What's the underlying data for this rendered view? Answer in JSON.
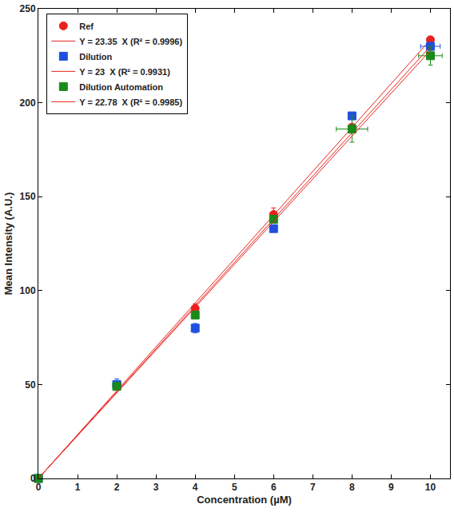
{
  "chart_data": {
    "type": "scatter",
    "xlabel": "Concentration (µM)",
    "ylabel": "Mean Intensity (A.U.)",
    "xlim": [
      0,
      10.5
    ],
    "ylim": [
      0,
      250
    ],
    "xticks": [
      0,
      1,
      2,
      3,
      4,
      5,
      6,
      7,
      8,
      9,
      10
    ],
    "yticks": [
      0,
      50,
      100,
      150,
      200,
      250
    ],
    "grid": false,
    "legend": "upper left",
    "series": [
      {
        "name": "Ref",
        "type": "scatter",
        "marker": "circle",
        "color": "#e8211d",
        "x": [
          0,
          2,
          4,
          6,
          8,
          10
        ],
        "values": [
          0,
          49.5,
          90.5,
          140.5,
          187,
          233.5
        ],
        "x_error": [
          0,
          0,
          0,
          0,
          0,
          0
        ],
        "y_error": [
          0,
          1,
          2.5,
          3.5,
          1.5,
          1.5
        ]
      },
      {
        "name": "Y = 23.35  X (R² = 0.9996)",
        "type": "line",
        "line_style": "solid",
        "color": "#e8211d",
        "x": [
          0,
          10
        ],
        "values": [
          0,
          233.5
        ]
      },
      {
        "name": "Dilution",
        "type": "scatter",
        "marker": "square",
        "color": "#1f4fe0",
        "x": [
          0,
          2,
          4,
          6,
          8,
          10
        ],
        "values": [
          0,
          50,
          80,
          133,
          193,
          230
        ],
        "x_error": [
          0,
          0.1,
          0.05,
          0,
          0,
          0.25
        ],
        "y_error": [
          0,
          3,
          2.5,
          1,
          1,
          2
        ]
      },
      {
        "name": "Y = 23  X (R² = 0.9931)",
        "type": "line",
        "line_style": "solid",
        "color": "#e8211d",
        "x": [
          0,
          10
        ],
        "values": [
          0,
          230
        ]
      },
      {
        "name": "Dilution Automation",
        "type": "scatter",
        "marker": "square",
        "color": "#1a8a1a",
        "x": [
          0,
          2,
          4,
          6,
          8,
          10
        ],
        "values": [
          0,
          49,
          87,
          138,
          186,
          225
        ],
        "x_error": [
          0,
          0.05,
          0,
          0,
          0.4,
          0.3
        ],
        "y_error": [
          0,
          1.5,
          1.5,
          1.5,
          7,
          5
        ]
      },
      {
        "name": "Y = 22.78  X (R² = 0.9985)",
        "type": "line",
        "line_style": "solid",
        "color": "#e8211d",
        "x": [
          0,
          10
        ],
        "values": [
          0,
          227.8
        ]
      }
    ]
  }
}
